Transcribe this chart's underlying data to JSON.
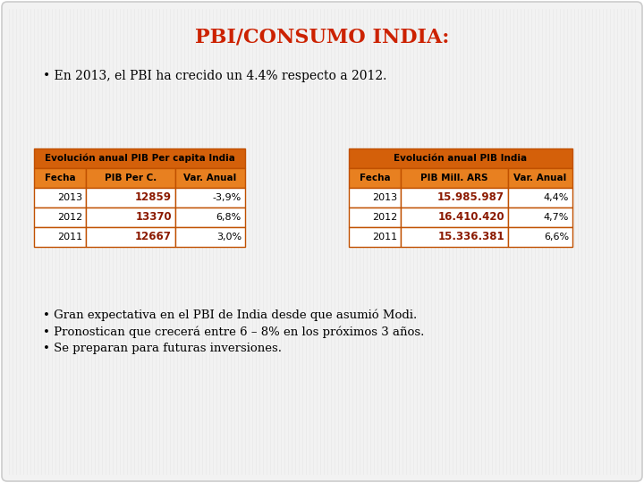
{
  "title": "PBI/CONSUMO INDIA:",
  "title_color": "#CC2200",
  "bg_color": "#F2F2F2",
  "slide_bg": "#FFFFFF",
  "bullet1": "• En 2013, el PBI ha crecido un 4.4% respecto a 2012.",
  "table1_header": "Evolución anual PIB Per capita India",
  "table1_cols": [
    "Fecha",
    "PIB Per C.",
    "Var. Anual"
  ],
  "table1_rows": [
    [
      "2013",
      "12859",
      "-3,9%"
    ],
    [
      "2012",
      "13370",
      "6,8%"
    ],
    [
      "2011",
      "12667",
      "3,0%"
    ]
  ],
  "table2_header": "Evolución anual PIB India",
  "table2_cols": [
    "Fecha",
    "PIB Mill. ARS",
    "Var. Anual"
  ],
  "table2_rows": [
    [
      "2013",
      "15.985.987",
      "4,4%"
    ],
    [
      "2012",
      "16.410.420",
      "4,7%"
    ],
    [
      "2011",
      "15.336.381",
      "6,6%"
    ]
  ],
  "header_bg": "#D4600A",
  "header_text": "#000000",
  "subheader_bg": "#E88020",
  "subheader_text": "#000000",
  "row_bg": "#FFFFFF",
  "row_bold_color": "#8B1A00",
  "border_color": "#C05000",
  "bullet2": "• Gran expectativa en el PBI de India desde que asumió Modi.",
  "bullet3": "• Pronostican que crecerá entre 6 – 8% en los próximos 3 años.",
  "bullet4": "• Se preparan para futuras inversiones."
}
